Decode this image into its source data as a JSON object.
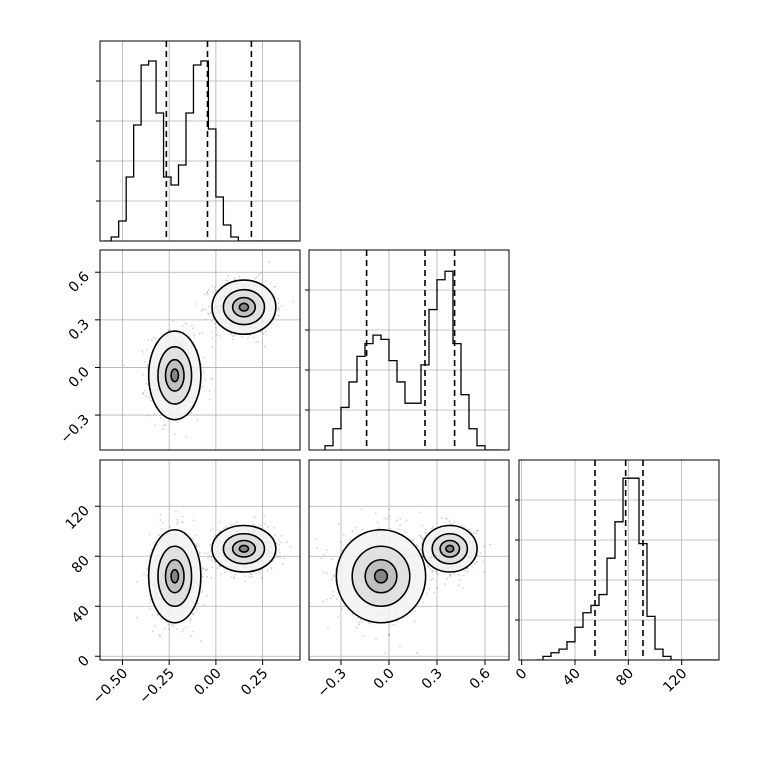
{
  "chart_data": {
    "type": "corner",
    "grid": true,
    "panels": [
      {
        "id": "hist-0",
        "type": "histogram",
        "row": 0,
        "col": 0,
        "xlim": [
          -0.62,
          0.45
        ],
        "bins": [
          -0.6,
          -0.56,
          -0.52,
          -0.48,
          -0.44,
          -0.4,
          -0.36,
          -0.32,
          -0.28,
          -0.24,
          -0.2,
          -0.16,
          -0.12,
          -0.08,
          -0.04,
          0.0,
          0.04,
          0.08,
          0.12,
          0.16,
          0.2,
          0.24,
          0.28,
          0.32,
          0.36,
          0.4,
          0.44
        ],
        "counts": [
          0,
          1,
          5,
          16,
          29,
          44,
          45,
          32,
          16,
          14,
          19,
          32,
          44,
          45,
          28,
          11,
          4,
          1,
          0,
          0,
          0,
          0,
          0,
          0,
          0,
          0
        ],
        "ymax": 50,
        "quantiles": [
          -0.265,
          -0.045,
          0.19
        ]
      },
      {
        "id": "hist-1",
        "type": "histogram",
        "row": 1,
        "col": 1,
        "xlim": [
          -0.5,
          0.75
        ],
        "bins": [
          -0.4,
          -0.35,
          -0.3,
          -0.25,
          -0.2,
          -0.15,
          -0.1,
          -0.05,
          0.0,
          0.05,
          0.1,
          0.15,
          0.2,
          0.25,
          0.3,
          0.35,
          0.4,
          0.45,
          0.5,
          0.55,
          0.6,
          0.65,
          0.7
        ],
        "counts": [
          1,
          5,
          10,
          16,
          22,
          25,
          27,
          26,
          21,
          16,
          11,
          11,
          20,
          33,
          40,
          42,
          25,
          13,
          5,
          1,
          0,
          0
        ],
        "ymax": 47,
        "quantiles": [
          -0.14,
          0.225,
          0.41
        ]
      },
      {
        "id": "hist-2",
        "type": "histogram",
        "row": 2,
        "col": 2,
        "xlim": [
          -2,
          148
        ],
        "bins": [
          10,
          16,
          22,
          28,
          34,
          40,
          46,
          52,
          58,
          64,
          70,
          76,
          82,
          88,
          94,
          100,
          106,
          112,
          118,
          124,
          130,
          136,
          142,
          148
        ],
        "counts": [
          0,
          1,
          2,
          3,
          5,
          9,
          13,
          15,
          18,
          28,
          38,
          50,
          50,
          32,
          12,
          3,
          1,
          0,
          0,
          0,
          0,
          0,
          0
        ],
        "ymax": 55,
        "quantiles": [
          55,
          78,
          91
        ]
      },
      {
        "id": "scatter-1-0",
        "type": "density2d",
        "row": 1,
        "col": 0,
        "x": "param_0",
        "y": "param_1",
        "xlim": [
          -0.62,
          0.45
        ],
        "ylim": [
          -0.52,
          0.74
        ],
        "clusters": [
          {
            "center": [
              -0.22,
              -0.05
            ],
            "spread": [
              0.09,
              0.18
            ]
          },
          {
            "center": [
              0.15,
              0.38
            ],
            "spread": [
              0.11,
              0.11
            ]
          }
        ]
      },
      {
        "id": "scatter-2-0",
        "type": "density2d",
        "row": 2,
        "col": 0,
        "x": "param_0",
        "y": "param_2",
        "xlim": [
          -0.62,
          0.45
        ],
        "ylim": [
          -3,
          157
        ],
        "clusters": [
          {
            "center": [
              -0.22,
              64
            ],
            "spread": [
              0.09,
              24
            ]
          },
          {
            "center": [
              0.15,
              86
            ],
            "spread": [
              0.11,
              12
            ]
          }
        ]
      },
      {
        "id": "scatter-2-1",
        "type": "density2d",
        "row": 2,
        "col": 1,
        "x": "param_1",
        "y": "param_2",
        "xlim": [
          -0.5,
          0.75
        ],
        "ylim": [
          -3,
          157
        ],
        "clusters": [
          {
            "center": [
              -0.05,
              64
            ],
            "spread": [
              0.18,
              24
            ]
          },
          {
            "center": [
              0.38,
              86
            ],
            "spread": [
              0.11,
              12
            ]
          }
        ]
      }
    ],
    "axes": [
      {
        "axis": "x",
        "col": 0,
        "tick_labels": [
          "−0.50",
          "−0.25",
          "0.00",
          "0.25"
        ],
        "tick_values": [
          -0.5,
          -0.25,
          0.0,
          0.25
        ]
      },
      {
        "axis": "x",
        "col": 1,
        "tick_labels": [
          "−0.3",
          "0.0",
          "0.3",
          "0.6"
        ],
        "tick_values": [
          -0.3,
          0.0,
          0.3,
          0.6
        ]
      },
      {
        "axis": "x",
        "col": 2,
        "tick_labels": [
          "0",
          "40",
          "80",
          "120"
        ],
        "tick_values": [
          0,
          40,
          80,
          120
        ]
      },
      {
        "axis": "y",
        "row": 1,
        "tick_labels": [
          "−0.3",
          "0.0",
          "0.3",
          "0.6"
        ],
        "tick_values": [
          -0.3,
          0.0,
          0.3,
          0.6
        ]
      },
      {
        "axis": "y",
        "row": 2,
        "tick_labels": [
          "0",
          "40",
          "80",
          "120"
        ],
        "tick_values": [
          0,
          40,
          80,
          120
        ]
      }
    ]
  }
}
